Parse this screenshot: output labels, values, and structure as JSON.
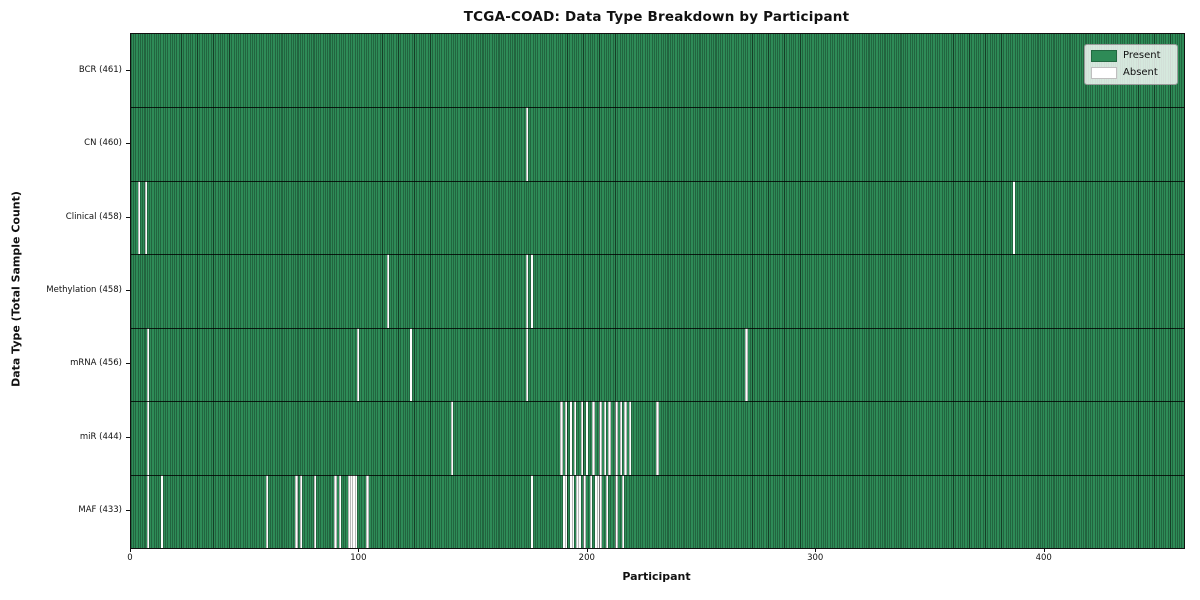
{
  "figure": {
    "title": "TCGA-COAD: Data Type Breakdown by Participant",
    "xlabel": "Participant",
    "ylabel": "Data Type (Total Sample Count)"
  },
  "legend": {
    "entries": [
      {
        "label": "Present",
        "color": "#2e8b57"
      },
      {
        "label": "Absent",
        "color": "#ffffff"
      }
    ]
  },
  "chart_data": {
    "type": "heatmap",
    "title": "TCGA-COAD: Data Type Breakdown by Participant",
    "xlabel": "Participant",
    "ylabel": "Data Type (Total Sample Count)",
    "legend": [
      "Present",
      "Absent"
    ],
    "legend_position": "upper right",
    "present_color": "#2e8b57",
    "absent_color": "#ffffff",
    "grid": false,
    "total_participants": 461,
    "x_axis": {
      "ticks": [
        0,
        100,
        200,
        300,
        400
      ],
      "range": [
        0,
        461
      ]
    },
    "rows": [
      {
        "data_type": "BCR",
        "label": "BCR (461)",
        "present_count": 461,
        "absent_participants": []
      },
      {
        "data_type": "CN",
        "label": "CN (460)",
        "present_count": 460,
        "absent_participants": [
          173
        ]
      },
      {
        "data_type": "Clinical",
        "label": "Clinical (458)",
        "present_count": 458,
        "absent_participants": [
          3,
          6,
          386
        ]
      },
      {
        "data_type": "Methylation",
        "label": "Methylation (458)",
        "present_count": 458,
        "absent_participants": [
          112,
          173,
          175
        ]
      },
      {
        "data_type": "mRNA",
        "label": "mRNA (456)",
        "present_count": 456,
        "absent_participants": [
          7,
          99,
          122,
          173,
          269
        ]
      },
      {
        "data_type": "miR",
        "label": "miR (444)",
        "present_count": 444,
        "absent_participants": [
          7,
          140,
          188,
          190,
          192,
          194,
          197,
          199,
          202,
          205,
          207,
          209,
          212,
          214,
          216,
          218,
          230
        ]
      },
      {
        "data_type": "MAF",
        "label": "MAF (433)",
        "present_count": 433,
        "absent_participants": [
          7,
          13,
          59,
          72,
          74,
          80,
          89,
          91,
          95,
          96,
          97,
          98,
          103,
          175,
          189,
          190,
          192,
          193,
          195,
          196,
          198,
          201,
          203,
          204,
          205,
          208,
          212,
          215
        ]
      }
    ]
  }
}
